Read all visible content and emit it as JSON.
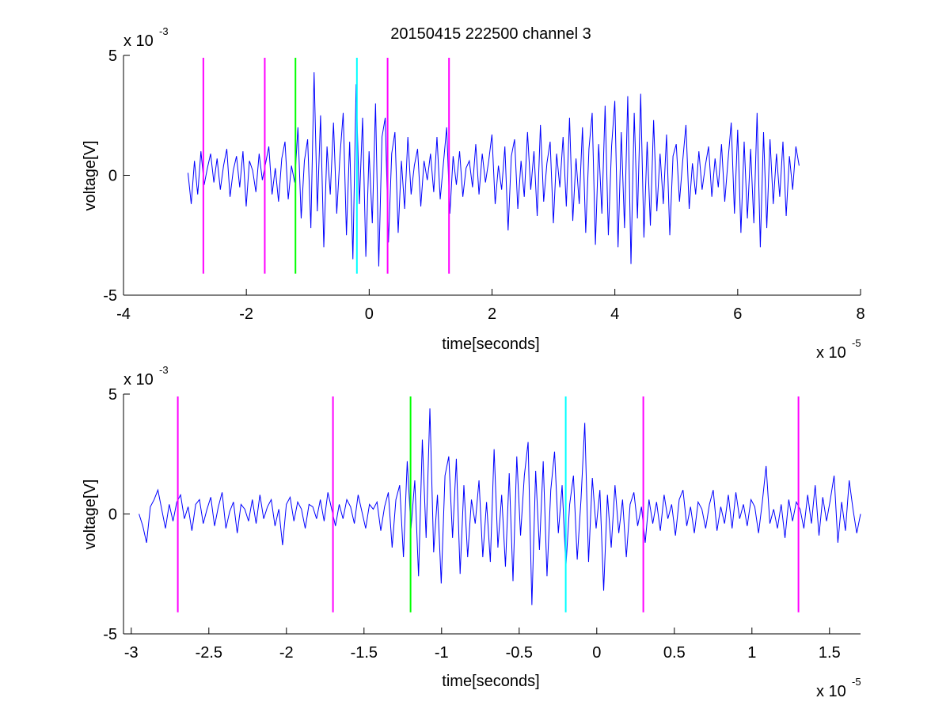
{
  "figure": {
    "title": "20150415 222500 channel 3"
  },
  "colors": {
    "signal": "#0000ff",
    "magenta_marker": "#ff00ff",
    "green_marker": "#00ff00",
    "cyan_marker": "#00ffff",
    "axes": "#000000",
    "background": "#ffffff"
  },
  "chart_data": [
    {
      "type": "line",
      "title": "20150415 222500 channel 3",
      "xlabel": "time[seconds]",
      "ylabel": "voltage[V]",
      "x_exponent_label": "x 10",
      "x_exponent_power": "-5",
      "y_exponent_label": "x 10",
      "y_exponent_power": "-3",
      "xlim": [
        -4,
        8
      ],
      "ylim": [
        -5,
        5
      ],
      "xticks": [
        -4,
        -2,
        0,
        2,
        4,
        6,
        8
      ],
      "xtick_labels": [
        "-4",
        "-2",
        "0",
        "2",
        "4",
        "6",
        "8"
      ],
      "yticks": [
        -5,
        0,
        5
      ],
      "ytick_labels": [
        "-5",
        "0",
        "5"
      ],
      "grid": false,
      "series": [
        {
          "color": "#0000ff",
          "x_range": [
            -2.95,
            7.0
          ],
          "values": [
            0.1,
            -1.2,
            0.6,
            -0.8,
            1.0,
            -0.4,
            0.3,
            0.9,
            -0.3,
            0.7,
            -0.6,
            0.4,
            1.1,
            -0.9,
            0.2,
            0.8,
            -0.5,
            1.0,
            -1.3,
            0.6,
            0.2,
            -0.7,
            0.9,
            -0.2,
            0.5,
            1.2,
            -0.8,
            0.3,
            -1.1,
            0.7,
            1.4,
            -1.0,
            0.4,
            -0.3,
            2.0,
            -1.8,
            0.6,
            1.5,
            -2.2,
            4.3,
            -1.5,
            2.5,
            -3.0,
            1.2,
            -0.8,
            2.2,
            -1.6,
            0.8,
            2.6,
            -2.5,
            1.4,
            -3.5,
            3.8,
            -1.2,
            2.4,
            -3.4,
            1.0,
            -2.0,
            3.0,
            -3.8,
            1.6,
            2.4,
            -2.8,
            0.9,
            1.8,
            -2.4,
            0.6,
            -1.4,
            1.6,
            -0.8,
            0.4,
            1.1,
            -1.3,
            0.6,
            -0.2,
            0.9,
            -0.7,
            1.6,
            -1.0,
            0.5,
            2.0,
            -1.6,
            0.8,
            -0.4,
            1.0,
            -0.9,
            0.3,
            0.6,
            -0.5,
            1.3,
            -0.8,
            0.9,
            -0.3,
            0.6,
            1.7,
            -1.2,
            0.4,
            -0.6,
            1.2,
            -2.3,
            0.8,
            1.5,
            -1.4,
            0.6,
            -0.9,
            1.8,
            -0.6,
            1.0,
            -1.7,
            2.1,
            -1.1,
            0.5,
            1.4,
            -2.0,
            0.9,
            -0.5,
            1.6,
            -1.3,
            2.4,
            -1.9,
            0.7,
            -1.2,
            2.0,
            -2.4,
            1.1,
            2.6,
            -2.9,
            1.3,
            -1.6,
            2.9,
            -2.5,
            1.2,
            3.1,
            -3.0,
            1.8,
            -2.2,
            3.3,
            -3.7,
            2.6,
            -1.8,
            3.4,
            -2.6,
            1.4,
            -2.1,
            2.3,
            -1.5,
            0.9,
            -1.2,
            1.7,
            -2.5,
            0.8,
            1.3,
            -1.1,
            0.6,
            2.1,
            -1.4,
            0.5,
            -0.8,
            1.0,
            -0.6,
            0.4,
            1.2,
            -0.9,
            0.7,
            -0.5,
            1.3,
            -1.1,
            0.6,
            2.2,
            -1.6,
            1.9,
            -2.4,
            1.4,
            -1.8,
            1.1,
            -2.0,
            2.6,
            -3.0,
            1.8,
            -2.2,
            1.5,
            -1.2,
            0.9,
            -0.9,
            1.4,
            -1.7,
            0.8,
            -0.6,
            1.2,
            0.4
          ]
        }
      ],
      "markers": [
        {
          "x": -2.7,
          "color": "#ff00ff"
        },
        {
          "x": -1.7,
          "color": "#ff00ff"
        },
        {
          "x": -1.2,
          "color": "#00ff00"
        },
        {
          "x": -0.2,
          "color": "#00ffff"
        },
        {
          "x": 0.3,
          "color": "#ff00ff"
        },
        {
          "x": 1.3,
          "color": "#ff00ff"
        }
      ],
      "marker_yrange": [
        -4.1,
        4.9
      ]
    },
    {
      "type": "line",
      "title": "",
      "xlabel": "time[seconds]",
      "ylabel": "voltage[V]",
      "x_exponent_label": "x 10",
      "x_exponent_power": "-5",
      "y_exponent_label": "x 10",
      "y_exponent_power": "-3",
      "xlim": [
        -3.05,
        1.7
      ],
      "ylim": [
        -5,
        5
      ],
      "xticks": [
        -3,
        -2.5,
        -2,
        -1.5,
        -1,
        -0.5,
        0,
        0.5,
        1,
        1.5
      ],
      "xtick_labels": [
        "-3",
        "-2.5",
        "-2",
        "-1.5",
        "-1",
        "-0.5",
        "0",
        "0.5",
        "1",
        "1.5"
      ],
      "yticks": [
        -5,
        0,
        5
      ],
      "ytick_labels": [
        "-5",
        "0",
        "5"
      ],
      "grid": false,
      "series": [
        {
          "color": "#0000ff",
          "x_range": [
            -2.95,
            1.7
          ],
          "values": [
            0.0,
            -0.5,
            -1.2,
            0.3,
            0.6,
            1.0,
            0.2,
            -0.6,
            0.4,
            -0.3,
            0.5,
            0.8,
            -0.2,
            0.3,
            -0.7,
            0.4,
            0.6,
            -0.4,
            0.2,
            0.7,
            -0.5,
            0.3,
            0.9,
            -0.6,
            0.1,
            0.5,
            -0.8,
            0.4,
            0.2,
            -0.3,
            0.6,
            -0.4,
            0.8,
            -0.2,
            0.3,
            0.6,
            -0.5,
            0.2,
            -1.3,
            0.4,
            0.7,
            -0.3,
            0.5,
            0.2,
            -0.6,
            0.4,
            0.3,
            -0.2,
            0.6,
            -0.3,
            0.9,
            0.2,
            -0.5,
            0.4,
            -0.2,
            0.6,
            0.3,
            -0.4,
            0.8,
            0.1,
            -0.6,
            0.4,
            0.2,
            0.5,
            -0.7,
            0.3,
            0.9,
            -1.4,
            0.6,
            1.2,
            -1.8,
            2.2,
            -0.6,
            1.4,
            -2.6,
            3.1,
            -1.0,
            4.4,
            -1.6,
            0.8,
            -2.9,
            1.6,
            2.4,
            -1.0,
            2.3,
            -2.5,
            1.2,
            -1.8,
            0.6,
            -0.4,
            1.4,
            -1.8,
            0.5,
            -2.0,
            2.7,
            -1.4,
            0.8,
            -2.2,
            1.7,
            -2.8,
            2.4,
            -0.9,
            1.6,
            3.0,
            -3.8,
            1.8,
            -1.5,
            2.2,
            -2.6,
            1.0,
            2.6,
            -0.8,
            1.2,
            -2.2,
            0.4,
            1.6,
            -1.9,
            0.6,
            3.8,
            -2.0,
            1.5,
            -0.6,
            1.0,
            -3.2,
            0.8,
            -1.4,
            1.2,
            -0.8,
            0.6,
            -1.8,
            0.4,
            0.9,
            -0.5,
            0.3,
            -1.2,
            0.6,
            -0.4,
            0.5,
            -0.7,
            0.8,
            -0.2,
            0.4,
            -0.9,
            0.6,
            1.0,
            -0.5,
            0.3,
            -0.8,
            0.5,
            0.2,
            -0.6,
            0.4,
            1.0,
            -0.7,
            0.3,
            -0.4,
            0.8,
            -0.6,
            0.9,
            -0.2,
            0.4,
            -0.5,
            0.6,
            0.3,
            -0.8,
            0.5,
            2.0,
            -0.4,
            0.2,
            -0.6,
            0.4,
            -1.0,
            0.6,
            -0.3,
            0.5,
            0.2,
            -0.6,
            0.8,
            -0.4,
            1.2,
            -0.9,
            0.7,
            -0.3,
            0.6,
            1.6,
            -1.2,
            0.5,
            -0.7,
            1.4,
            0.2,
            -0.8,
            0.0
          ]
        }
      ],
      "markers": [
        {
          "x": -2.7,
          "color": "#ff00ff"
        },
        {
          "x": -1.7,
          "color": "#ff00ff"
        },
        {
          "x": -1.2,
          "color": "#00ff00"
        },
        {
          "x": -0.2,
          "color": "#00ffff"
        },
        {
          "x": 0.3,
          "color": "#ff00ff"
        },
        {
          "x": 1.3,
          "color": "#ff00ff"
        }
      ],
      "marker_yrange": [
        -4.1,
        4.9
      ]
    }
  ]
}
